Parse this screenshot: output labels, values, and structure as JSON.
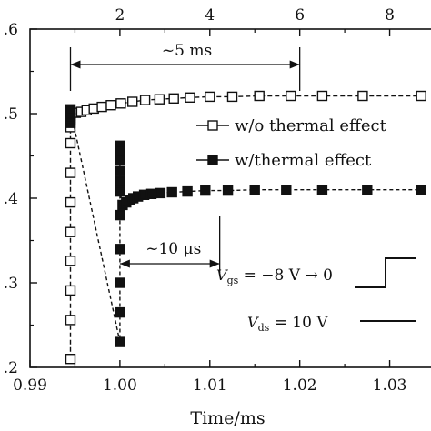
{
  "chart_data": {
    "type": "scatter",
    "xlabel": "Time/ms",
    "xlim": [
      0.99,
      1.035
    ],
    "xticks": [
      "0.99",
      "1.00",
      "1.01",
      "1.02",
      "1.03"
    ],
    "x2lim": [
      0.0,
      9.0
    ],
    "x2ticks": [
      "2",
      "4",
      "6",
      "8"
    ],
    "ylim": [
      0.2,
      0.6
    ],
    "yticks": [
      ".2",
      ".3",
      ".4",
      ".5",
      ".6"
    ],
    "series": [
      {
        "name": "w/o thermal effect",
        "marker": "open-square",
        "color": "#111111",
        "x": [
          0.9945,
          0.9945,
          0.9945,
          0.9945,
          0.9945,
          0.9945,
          0.9945,
          0.9945,
          0.9945,
          0.9945,
          0.9945,
          0.9945,
          0.9951,
          0.9957,
          0.9963,
          0.9971,
          0.998,
          0.999,
          1.0001,
          1.0014,
          1.0028,
          1.0044,
          1.006,
          1.0078,
          1.01,
          1.0125,
          1.0155,
          1.019,
          1.0225,
          1.027,
          1.0335
        ],
        "y": [
          0.21,
          0.256,
          0.291,
          0.326,
          0.36,
          0.395,
          0.43,
          0.465,
          0.484,
          0.492,
          0.497,
          0.5,
          0.501,
          0.502,
          0.504,
          0.506,
          0.508,
          0.51,
          0.512,
          0.514,
          0.516,
          0.517,
          0.518,
          0.519,
          0.52,
          0.52,
          0.521,
          0.521,
          0.521,
          0.521,
          0.521
        ]
      },
      {
        "name": "w/thermal effect",
        "marker": "filled-square",
        "color": "#111111",
        "x": [
          0.9945,
          0.9945,
          0.9945,
          0.9945,
          1.0,
          1.0,
          1.0,
          1.0,
          1.0,
          1.0,
          1.0,
          1.0,
          1.0,
          1.0,
          1.0,
          1.0,
          1.0003,
          1.0007,
          1.0011,
          1.0015,
          1.002,
          1.0027,
          1.0035,
          1.0045,
          1.0058,
          1.0075,
          1.0095,
          1.012,
          1.015,
          1.0185,
          1.0225,
          1.0275,
          1.0335
        ],
        "y": [
          0.489,
          0.495,
          0.5,
          0.505,
          0.23,
          0.265,
          0.3,
          0.34,
          0.38,
          0.42,
          0.462,
          0.455,
          0.445,
          0.432,
          0.42,
          0.408,
          0.392,
          0.395,
          0.398,
          0.4,
          0.402,
          0.404,
          0.405,
          0.406,
          0.407,
          0.408,
          0.409,
          0.409,
          0.41,
          0.41,
          0.41,
          0.41,
          0.41
        ]
      }
    ],
    "annotations": {
      "top_interval": "~5 ms",
      "mid_interval": "~10 μs",
      "vgs": {
        "symbol": "V",
        "sub": "gs",
        "text": " = −8 V → 0"
      },
      "vds": {
        "symbol": "V",
        "sub": "ds",
        "text": " = 10 V"
      }
    },
    "legend": {
      "placement": "right",
      "entries": [
        "w/o thermal effect",
        "w/thermal effect"
      ]
    },
    "grid": false
  }
}
